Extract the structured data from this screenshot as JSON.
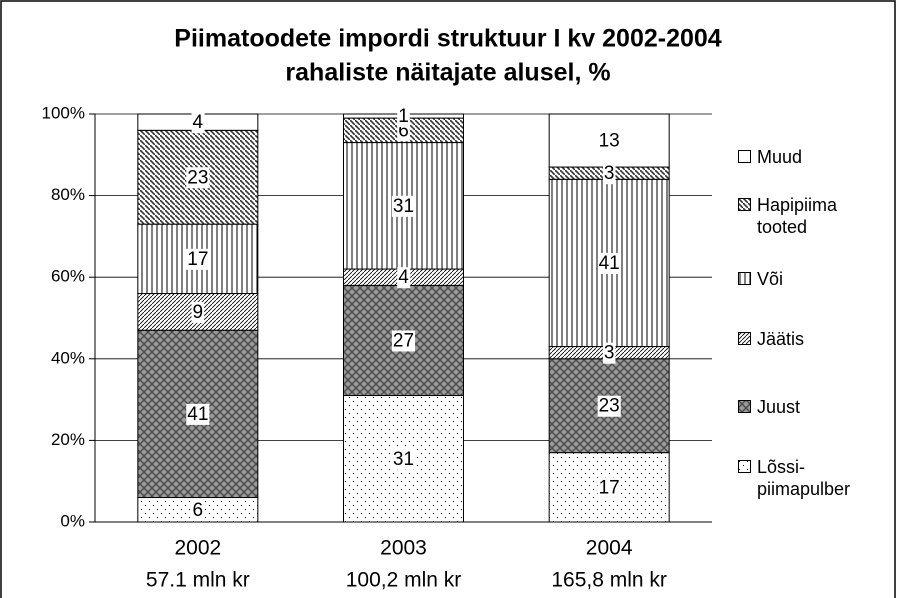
{
  "chart_data": {
    "type": "stacked-bar",
    "title": "Piimatoodete impordi struktuur  I kv 2002-2004",
    "subtitle": "rahaliste näitajate alusel, %",
    "categories": [
      "2002",
      "2003",
      "2004"
    ],
    "subcategories": [
      "57.1 mln kr",
      "100,2 mln kr",
      "165,8 mln kr"
    ],
    "series": [
      {
        "name": "Lõssi-piimapulber",
        "color": "#000000",
        "values": [
          6,
          31,
          17
        ]
      },
      {
        "name": "Juust",
        "color": "#4a4a4a",
        "values": [
          41,
          27,
          23
        ]
      },
      {
        "name": "Jäätis",
        "color": "#000000",
        "values": [
          9,
          4,
          3
        ]
      },
      {
        "name": "Või",
        "color": "#000000",
        "values": [
          17,
          31,
          41
        ]
      },
      {
        "name": "Hapipiima tooted",
        "color": "#333333",
        "values": [
          23,
          6,
          3
        ]
      },
      {
        "name": "Muud",
        "color": "#ffffff",
        "values": [
          4,
          1,
          13
        ]
      }
    ],
    "ylim": [
      0,
      100
    ],
    "yticks": [
      {
        "value": 0,
        "label": "0%"
      },
      {
        "value": 20,
        "label": "20%"
      },
      {
        "value": 40,
        "label": "40%"
      },
      {
        "value": 60,
        "label": "60%"
      },
      {
        "value": 80,
        "label": "80%"
      },
      {
        "value": 100,
        "label": "100%"
      }
    ],
    "grid": true,
    "legend": "right"
  }
}
